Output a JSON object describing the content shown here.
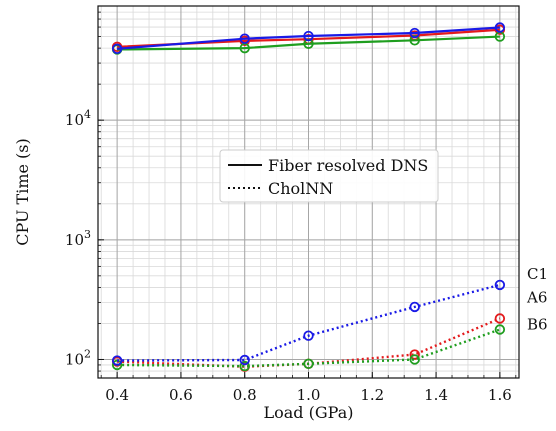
{
  "chart_data": {
    "type": "line",
    "xlabel": "Load (GPa)",
    "ylabel": "CPU Time (s)",
    "xlim": [
      0.34,
      1.66
    ],
    "ylim": [
      70,
      90000
    ],
    "yscale": "log",
    "grid": true,
    "x_ticks": [
      {
        "value": 0.4,
        "label": "0.4"
      },
      {
        "value": 0.6,
        "label": "0.6"
      },
      {
        "value": 0.8,
        "label": "0.8"
      },
      {
        "value": 1.0,
        "label": "1.0"
      },
      {
        "value": 1.2,
        "label": "1.2"
      },
      {
        "value": 1.4,
        "label": "1.4"
      },
      {
        "value": 1.6,
        "label": "1.6"
      }
    ],
    "y_ticks": [
      {
        "value": 100,
        "base": "10",
        "exp": "2"
      },
      {
        "value": 1000,
        "base": "10",
        "exp": "3"
      },
      {
        "value": 10000,
        "base": "10",
        "exp": "4"
      }
    ],
    "x": [
      0.4,
      0.8,
      1.0,
      1.333,
      1.6
    ],
    "series": [
      {
        "label": "A6",
        "style": "solid",
        "color": "#e31a1c",
        "values": [
          41000,
          46000,
          47500,
          51000,
          57000
        ]
      },
      {
        "label": "B6",
        "style": "solid",
        "color": "#1f9e1f",
        "values": [
          39000,
          40000,
          43500,
          46500,
          50000
        ]
      },
      {
        "label": "C1",
        "style": "solid",
        "color": "#1a1ae6",
        "values": [
          39500,
          48000,
          50500,
          53500,
          59500
        ]
      },
      {
        "label": "A6",
        "style": "dotted",
        "color": "#e31a1c",
        "values": [
          96,
          87,
          92,
          110,
          220
        ]
      },
      {
        "label": "B6",
        "style": "dotted",
        "color": "#1f9e1f",
        "values": [
          90,
          88,
          92,
          100,
          178
        ]
      },
      {
        "label": "C1",
        "style": "dotted",
        "color": "#1a1ae6",
        "values": [
          98,
          99,
          158,
          275,
          420
        ]
      }
    ],
    "legend": {
      "placement": "center-right",
      "entries": [
        {
          "label": "Fiber resolved DNS",
          "style": "solid"
        },
        {
          "label": "CholNN",
          "style": "dotted"
        }
      ]
    },
    "end_labels": [
      {
        "text": "C1",
        "series_index": 5
      },
      {
        "text": "A6",
        "series_index": 3
      },
      {
        "text": "B6",
        "series_index": 4
      }
    ]
  }
}
